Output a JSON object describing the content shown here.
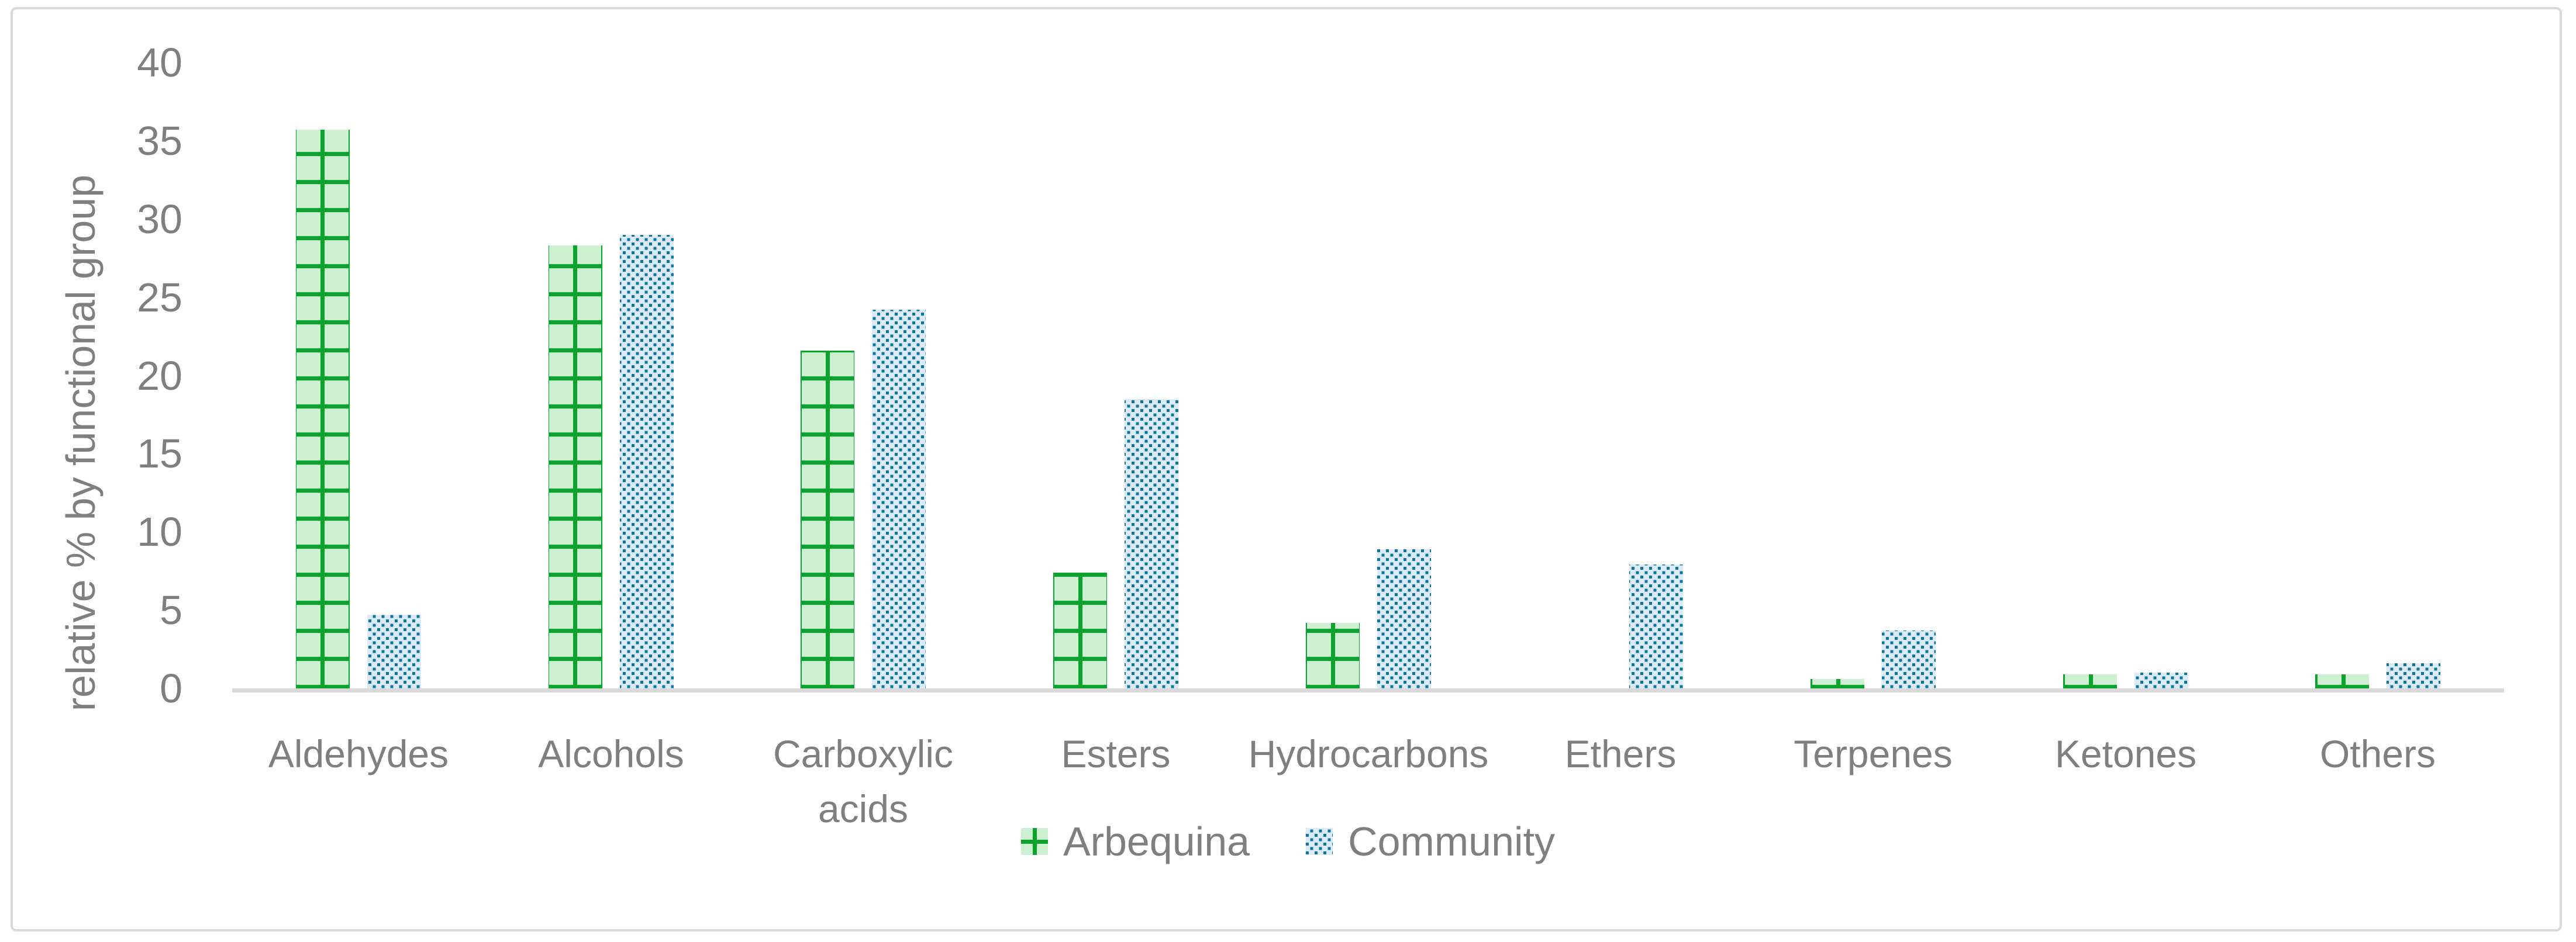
{
  "figure": {
    "background": "#ffffff",
    "border_color": "#d9d9d9",
    "text_color": "#7f7f7f",
    "axis_line_color": "#d9d9d9"
  },
  "chart_data": {
    "type": "bar",
    "title": "",
    "xlabel": "",
    "ylabel": "relative % by functional group",
    "ylim": [
      0,
      40
    ],
    "yticks": [
      0,
      5,
      10,
      15,
      20,
      25,
      30,
      35,
      40
    ],
    "grid": false,
    "legend_position": "bottom-center",
    "categories": [
      "Aldehydes",
      "Alcohols",
      "Carboxylic acids",
      "Esters",
      "Hydrocarbons",
      "Ethers",
      "Terpenes",
      "Ketones",
      "Others"
    ],
    "series": [
      {
        "name": "Arbequina",
        "pattern": "green-crosshatch-grid",
        "fill_color": "#cdf0d1",
        "pattern_color": "#09a32e",
        "values": [
          35.7,
          28.3,
          21.6,
          7.4,
          4.2,
          0,
          0.6,
          0.9,
          0.9
        ]
      },
      {
        "name": "Community",
        "pattern": "blue-dashed-upward-diagonal",
        "fill_color": "#daeaf6",
        "pattern_color": "#0e759e",
        "values": [
          4.7,
          29.0,
          24.2,
          18.5,
          8.9,
          7.9,
          3.7,
          1.0,
          1.6
        ]
      }
    ]
  }
}
